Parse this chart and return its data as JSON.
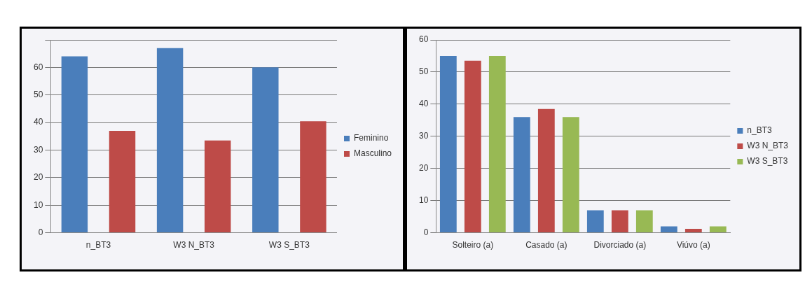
{
  "chart_data": [
    {
      "type": "bar",
      "categories": [
        "n_BT3",
        "W3 N_BT3",
        "W3 S_BT3"
      ],
      "series": [
        {
          "name": "Feminino",
          "color": "#4a7ebb",
          "values": [
            64,
            67,
            60
          ]
        },
        {
          "name": "Masculino",
          "color": "#be4b48",
          "values": [
            37,
            33.5,
            40.5
          ]
        }
      ],
      "ylim": [
        0,
        70
      ],
      "yticks": [
        0,
        10,
        20,
        30,
        40,
        50,
        60,
        {
          "value": 70,
          "label": null
        }
      ],
      "grid": "y",
      "legend": "right"
    },
    {
      "type": "bar",
      "categories": [
        "Solteiro (a)",
        "Casado (a)",
        "Divorciado (a)",
        "Viúvo (a)"
      ],
      "series": [
        {
          "name": "n_BT3",
          "color": "#4a7ebb",
          "values": [
            55,
            36,
            7,
            2
          ]
        },
        {
          "name": "W3 N_BT3",
          "color": "#be4b48",
          "values": [
            53.5,
            38.5,
            7,
            1.2
          ]
        },
        {
          "name": "W3 S_BT3",
          "color": "#98b954",
          "values": [
            55,
            36,
            7,
            2
          ]
        }
      ],
      "ylim": [
        0,
        60
      ],
      "yticks": [
        0,
        10,
        20,
        30,
        40,
        50,
        60
      ],
      "grid": "y",
      "legend": "right"
    }
  ]
}
